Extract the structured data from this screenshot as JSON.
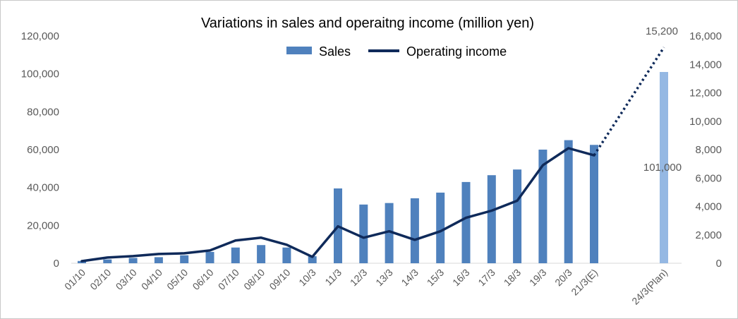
{
  "chart_data": {
    "type": "bar",
    "title": "Variations in sales and operaitng income (million yen)",
    "categories": [
      "01/10",
      "02/10",
      "03/10",
      "04/10",
      "05/10",
      "06/10",
      "07/10",
      "08/10",
      "09/10",
      "10/3",
      "11/3",
      "12/3",
      "13/3",
      "14/3",
      "15/3",
      "16/3",
      "17/3",
      "18/3",
      "19/3",
      "20/3",
      "21/3(E)",
      "24/3(Plan)"
    ],
    "series": [
      {
        "name": "Sales",
        "type": "bar",
        "axis": "left",
        "color": "#4f81bd",
        "plan_color": "#95b8e3",
        "values": [
          1200,
          2000,
          2800,
          3200,
          4200,
          6000,
          8300,
          9600,
          8300,
          3700,
          39500,
          31000,
          31800,
          34300,
          37300,
          42900,
          46500,
          49500,
          60000,
          65000,
          62500,
          101000
        ]
      },
      {
        "name": "Operating income",
        "type": "line",
        "axis": "right",
        "color": "#0f2a5a",
        "values": [
          150,
          400,
          500,
          650,
          700,
          900,
          1600,
          1800,
          1300,
          450,
          2600,
          1800,
          2250,
          1650,
          2250,
          3200,
          3700,
          4400,
          6900,
          8100,
          7600,
          15200
        ],
        "dotted_from_index": 20
      }
    ],
    "y_left": {
      "min": 0,
      "max": 120000,
      "ticks": [
        "0",
        "20,000",
        "40,000",
        "60,000",
        "80,000",
        "100,000",
        "120,000"
      ]
    },
    "y_right": {
      "min": 0,
      "max": 16000,
      "ticks": [
        "0",
        "2,000",
        "4,000",
        "6,000",
        "8,000",
        "10,000",
        "12,000",
        "14,000",
        "16,000"
      ]
    },
    "data_labels": {
      "sales_plan": "101,000",
      "income_plan": "15,200"
    },
    "legend": {
      "placement": "top-center",
      "items": [
        "Sales",
        "Operating income"
      ]
    },
    "grid": false
  }
}
